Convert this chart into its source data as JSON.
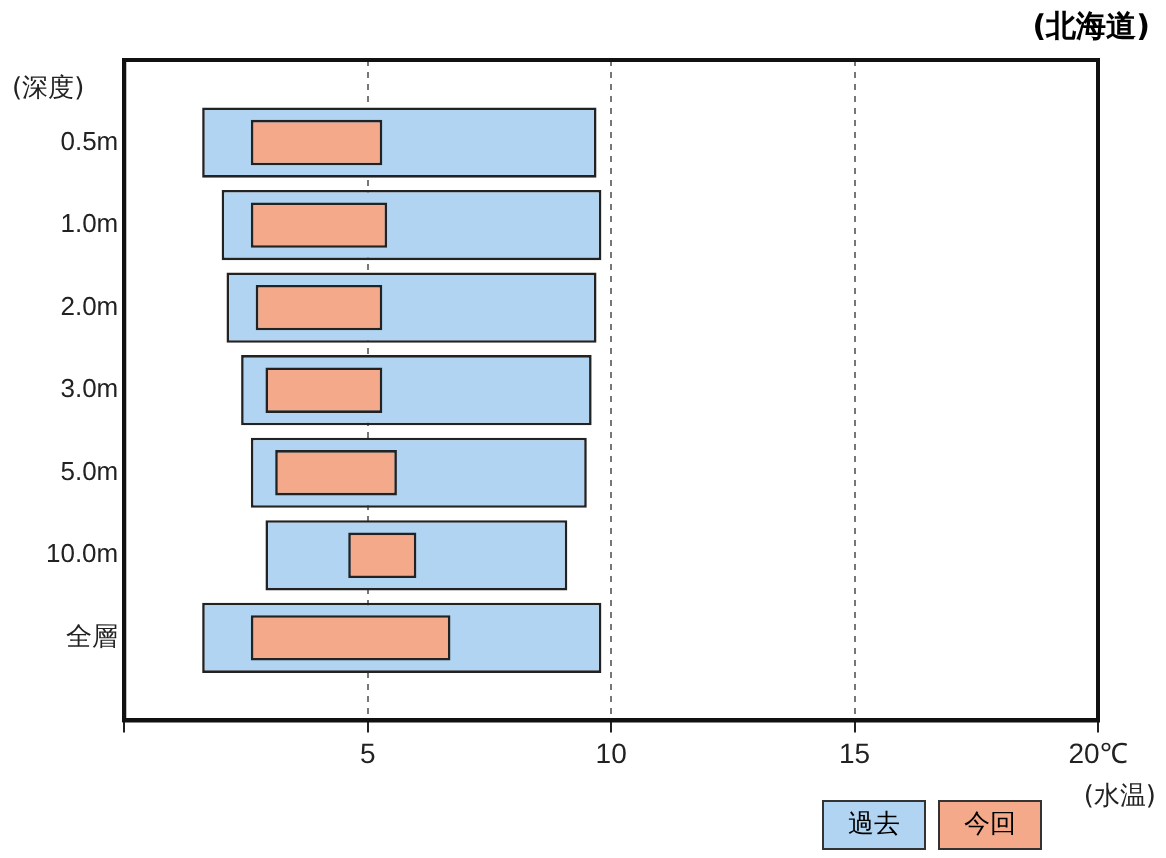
{
  "chart_data": {
    "type": "bar",
    "orientation": "horizontal",
    "title": "(北海道)",
    "ylabel": "(深度)",
    "xlabel": "(水温)",
    "categories": [
      "0.5m",
      "1.0m",
      "2.0m",
      "3.0m",
      "5.0m",
      "10.0m",
      "全層"
    ],
    "series": [
      {
        "name": "過去",
        "color": "#b0d4f1",
        "base": [
          1.6,
          2.0,
          2.1,
          2.4,
          2.6,
          2.9,
          1.6
        ],
        "values": [
          8.1,
          7.8,
          7.6,
          7.2,
          6.9,
          6.2,
          8.2
        ]
      },
      {
        "name": "今回",
        "color": "#f4a98a",
        "base": [
          2.6,
          2.6,
          2.7,
          2.9,
          3.1,
          4.6,
          2.6
        ],
        "values": [
          2.7,
          2.8,
          2.6,
          2.4,
          2.5,
          1.4,
          4.1
        ]
      }
    ],
    "xlim": [
      0,
      20
    ],
    "xticks": [
      {
        "value": 0,
        "label": null
      },
      5,
      10,
      15,
      {
        "value": 20,
        "label": "20℃"
      }
    ],
    "grid": "x",
    "legend": "bottom right"
  }
}
